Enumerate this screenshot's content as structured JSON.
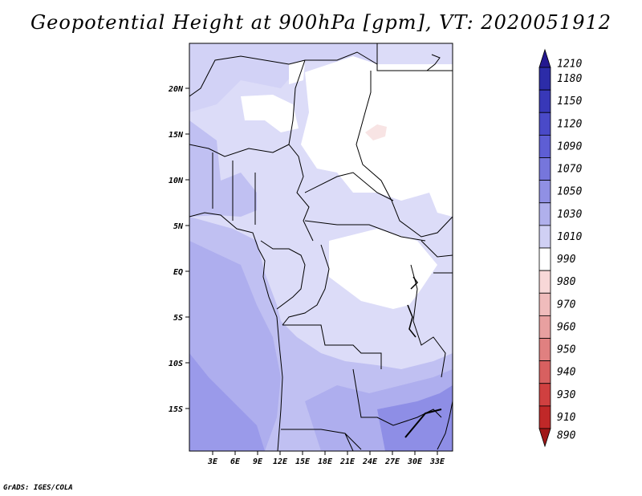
{
  "title": "Geopotential Height at 900hPa [gpm], VT: 2020051912",
  "credit": "GrADS: IGES/COLA",
  "map": {
    "lat_labels": [
      "20N",
      "15N",
      "10N",
      "5N",
      "EQ",
      "5S",
      "10S",
      "15S"
    ],
    "lon_labels": [
      "3E",
      "6E",
      "9E",
      "12E",
      "15E",
      "18E",
      "21E",
      "24E",
      "27E",
      "30E",
      "33E"
    ]
  },
  "colorbar": {
    "labels": [
      "1210",
      "1180",
      "1150",
      "1120",
      "1090",
      "1070",
      "1050",
      "1030",
      "1010",
      "990",
      "980",
      "970",
      "960",
      "950",
      "940",
      "930",
      "910",
      "890"
    ],
    "colors": [
      "#241890",
      "#2c2ca8",
      "#3838b8",
      "#4a4ac8",
      "#5e5ed4",
      "#7676dc",
      "#9090e4",
      "#b0b0ec",
      "#d0d0f4",
      "#ffffff",
      "#f8d8d8",
      "#f0bcbc",
      "#e8a0a0",
      "#e08080",
      "#d86060",
      "#d04040",
      "#c02828",
      "#a01818"
    ]
  }
}
